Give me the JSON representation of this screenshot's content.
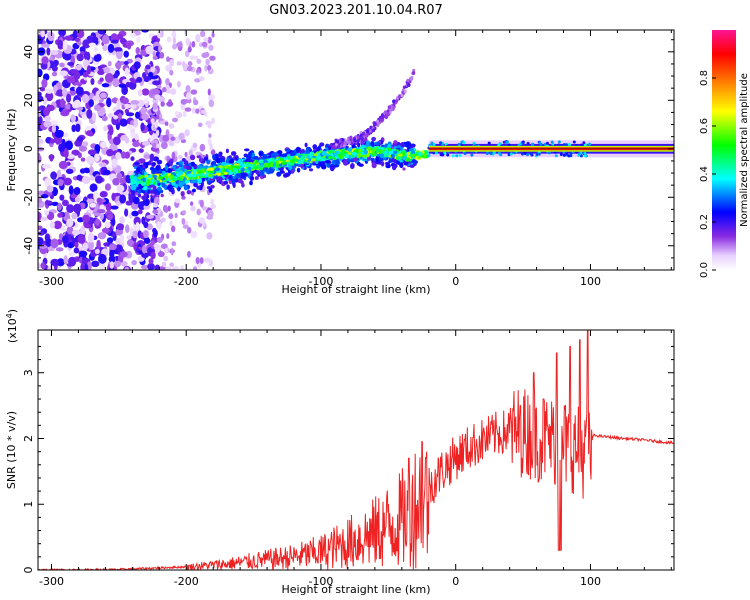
{
  "title": "GN03.2023.201.10.04.R07",
  "chart_data": [
    {
      "type": "heatmap",
      "xlabel": "Height of straight line (km)",
      "ylabel": "Frequency (Hz)",
      "xlim": [
        -310,
        162
      ],
      "ylim": [
        -50,
        49
      ],
      "xticks": [
        -300,
        -200,
        -100,
        0,
        100
      ],
      "yticks": [
        -40,
        -20,
        0,
        20,
        40
      ],
      "colorbar": {
        "label": "Normalized spectral amplitude",
        "range": [
          0,
          1
        ],
        "ticks": [
          0.0,
          0.2,
          0.4,
          0.6,
          0.8
        ],
        "colormap": [
          "#ffffff",
          "#e8d0ff",
          "#8a2be2",
          "#0000ff",
          "#00ffff",
          "#00ff00",
          "#ffff00",
          "#ff8000",
          "#ff0000",
          "#ff1493"
        ]
      },
      "ridge": {
        "x": [
          -230,
          -200,
          -150,
          -100,
          -60,
          -35,
          -20,
          -10,
          0,
          50,
          100,
          162
        ],
        "y": [
          -13,
          -11,
          -7,
          -3,
          -1,
          -3,
          -2,
          -1,
          0,
          0,
          0,
          0
        ]
      }
    },
    {
      "type": "line",
      "xlabel": "Height of straight line (km)",
      "ylabel": "SNR (10 * v/v)",
      "exponent": "(x10",
      "exponent_power": "4",
      "exponent_close": ")",
      "xlim": [
        -310,
        162
      ],
      "ylim": [
        0,
        3.65
      ],
      "xticks": [
        -300,
        -200,
        -100,
        0,
        100
      ],
      "yticks": [
        0,
        1,
        2,
        3
      ],
      "color": "#ee2222",
      "envelope": {
        "x": [
          -310,
          -250,
          -200,
          -170,
          -150,
          -120,
          -100,
          -80,
          -60,
          -40,
          -30,
          -20,
          -10,
          0,
          10,
          20,
          30,
          40,
          50,
          60,
          70,
          80,
          90,
          100,
          102,
          120,
          140,
          162
        ],
        "y": [
          0,
          0.01,
          0.05,
          0.1,
          0.15,
          0.22,
          0.3,
          0.45,
          0.62,
          0.85,
          1.1,
          1.3,
          1.55,
          1.75,
          1.9,
          2.0,
          2.1,
          2.15,
          2.18,
          2.1,
          2.05,
          2.0,
          1.9,
          1.8,
          2.05,
          2.01,
          1.98,
          1.93
        ]
      },
      "spikes": [
        {
          "x": -35,
          "y": 1.7
        },
        {
          "x": -25,
          "y": 1.95
        },
        {
          "x": 48,
          "y": 2.5
        },
        {
          "x": 58,
          "y": 3.0
        },
        {
          "x": 65,
          "y": 2.6
        },
        {
          "x": 75,
          "y": 3.3
        },
        {
          "x": 78,
          "y": 0.3
        },
        {
          "x": 85,
          "y": 3.4
        },
        {
          "x": 92,
          "y": 3.5
        },
        {
          "x": 98,
          "y": 3.65
        }
      ]
    }
  ]
}
